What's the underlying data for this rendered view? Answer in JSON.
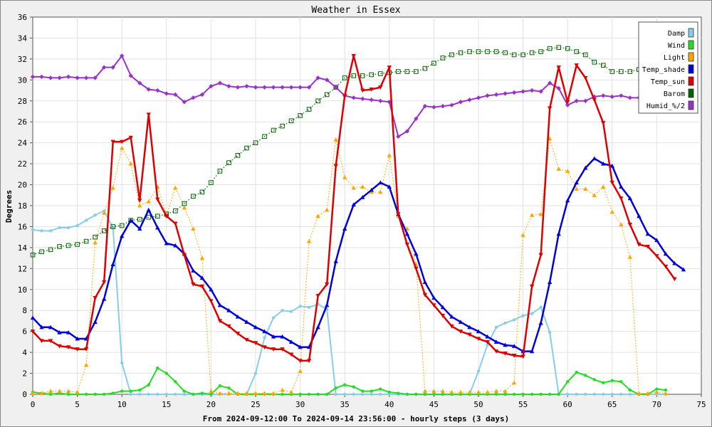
{
  "chart_data": {
    "type": "line",
    "title": "Weather in Essex",
    "xlabel": "From 2024-09-12:00 To 2024-09-14 23:56:00 - hourly steps (3 days)",
    "ylabel": "Degrees",
    "xlim": [
      0,
      75
    ],
    "ylim": [
      0,
      36
    ],
    "x_ticks": [
      0,
      5,
      10,
      15,
      20,
      25,
      30,
      35,
      40,
      45,
      50,
      55,
      60,
      65,
      70,
      75
    ],
    "y_ticks": [
      0,
      2,
      4,
      6,
      8,
      10,
      12,
      14,
      16,
      18,
      20,
      22,
      24,
      26,
      28,
      30,
      32,
      34,
      36
    ],
    "grid": true,
    "legend_position": "top-right",
    "x_start": 0,
    "series": [
      {
        "name": "Damp",
        "color": "#87ceeb",
        "style": "solid",
        "marker": "dot",
        "values": [
          15.7,
          15.6,
          15.6,
          15.9,
          15.9,
          16.1,
          16.6,
          17.1,
          17.5,
          15.9,
          3.0,
          0.0,
          0.0,
          0.0,
          0.0,
          0.0,
          0.0,
          0.0,
          0.0,
          0.0,
          0.0,
          0.0,
          0.0,
          0.0,
          0.0,
          2.0,
          5.4,
          7.3,
          8.0,
          7.9,
          8.4,
          8.3,
          8.6,
          8.1,
          0.0,
          0.0,
          0.0,
          0.0,
          0.0,
          0.0,
          0.0,
          0.0,
          0.0,
          0.0,
          0.0,
          0.0,
          0.0,
          0.0,
          0.0,
          0.0,
          2.2,
          4.7,
          6.4,
          6.8,
          7.1,
          7.5,
          7.7,
          8.3,
          5.9,
          0.0,
          0.0,
          0.0,
          0.0,
          0.0,
          0.0,
          0.0,
          0.0,
          0.0,
          0.0,
          0.0,
          0.0,
          0.0
        ]
      },
      {
        "name": "Wind",
        "color": "#22dd22",
        "style": "solid",
        "marker": "dot",
        "values": [
          0.2,
          0.1,
          0.0,
          0.1,
          0.0,
          0.0,
          0.0,
          0.0,
          0.0,
          0.1,
          0.3,
          0.3,
          0.4,
          0.9,
          2.5,
          2.0,
          1.2,
          0.3,
          0.0,
          0.1,
          0.0,
          0.8,
          0.6,
          0.0,
          0.0,
          0.0,
          0.0,
          0.0,
          0.0,
          0.0,
          0.0,
          0.0,
          0.0,
          0.0,
          0.6,
          0.9,
          0.7,
          0.3,
          0.3,
          0.5,
          0.2,
          0.1,
          0.0,
          0.0,
          0.0,
          0.0,
          0.0,
          0.0,
          0.0,
          0.0,
          0.0,
          0.0,
          0.0,
          0.0,
          0.0,
          0.0,
          0.0,
          0.0,
          0.0,
          0.0,
          1.2,
          2.1,
          1.8,
          1.4,
          1.1,
          1.3,
          1.2,
          0.4,
          0.0,
          0.0,
          0.5,
          0.4
        ]
      },
      {
        "name": "Light",
        "color": "#ffa500",
        "style": "dotted",
        "marker": "triangle-up",
        "values": [
          0.1,
          0.1,
          0.3,
          0.3,
          0.3,
          0.2,
          2.8,
          14.5,
          17.3,
          19.7,
          23.5,
          22.0,
          18.0,
          18.4,
          19.8,
          17.1,
          19.7,
          17.8,
          15.8,
          13.0,
          0.3,
          0.1,
          0.1,
          0.1,
          0.1,
          0.1,
          0.1,
          0.1,
          0.4,
          0.2,
          2.2,
          14.6,
          17.0,
          17.6,
          24.3,
          20.7,
          19.7,
          19.8,
          19.3,
          19.3,
          22.8,
          17.0,
          15.8,
          12.4,
          0.3,
          0.3,
          0.3,
          0.2,
          0.2,
          0.2,
          0.2,
          0.2,
          0.3,
          0.3,
          1.1,
          15.2,
          17.1,
          17.2,
          24.4,
          21.5,
          21.3,
          19.6,
          19.6,
          19.0,
          19.8,
          17.4,
          16.2,
          13.1,
          0.1,
          0.1,
          0.2,
          0.1
        ]
      },
      {
        "name": "Temp_shade",
        "color": "#0000dd",
        "style": "solid",
        "marker": "triangle-up",
        "values": [
          7.3,
          6.4,
          6.4,
          5.9,
          5.9,
          5.3,
          5.3,
          6.9,
          9.1,
          12.4,
          15.1,
          16.6,
          15.8,
          17.6,
          15.9,
          14.4,
          14.2,
          13.4,
          11.8,
          11.1,
          10.0,
          8.5,
          8.0,
          7.4,
          6.9,
          6.4,
          6.0,
          5.5,
          5.5,
          5.0,
          4.5,
          4.5,
          6.4,
          8.5,
          12.7,
          15.8,
          18.1,
          18.8,
          19.5,
          20.2,
          19.8,
          17.2,
          15.3,
          13.4,
          10.7,
          9.2,
          8.3,
          7.4,
          6.9,
          6.4,
          6.0,
          5.5,
          5.0,
          4.7,
          4.6,
          4.1,
          4.1,
          6.8,
          10.7,
          15.3,
          18.5,
          20.2,
          21.6,
          22.5,
          22.0,
          21.8,
          19.8,
          18.7,
          17.0,
          15.3,
          14.7,
          13.4,
          12.5,
          11.9
        ]
      },
      {
        "name": "Temp_sun",
        "color": "#dd0000",
        "style": "solid",
        "marker": "triangle-down",
        "values": [
          6.0,
          5.1,
          5.1,
          4.6,
          4.5,
          4.3,
          4.3,
          9.2,
          10.7,
          24.1,
          24.1,
          24.5,
          18.5,
          26.7,
          18.6,
          17.0,
          16.3,
          13.3,
          10.5,
          10.3,
          8.9,
          7.0,
          6.5,
          5.8,
          5.2,
          4.9,
          4.5,
          4.3,
          4.3,
          3.8,
          3.2,
          3.2,
          9.4,
          10.5,
          21.8,
          28.5,
          32.3,
          29.0,
          29.1,
          29.3,
          31.2,
          17.2,
          14.3,
          12.0,
          9.5,
          8.5,
          7.5,
          6.5,
          6.0,
          5.7,
          5.3,
          5.0,
          4.1,
          3.9,
          3.7,
          3.6,
          10.3,
          13.3,
          27.3,
          31.2,
          27.9,
          31.4,
          30.2,
          28.1,
          25.9,
          20.2,
          18.7,
          16.2,
          14.3,
          14.1,
          13.2,
          12.2,
          11.0
        ]
      },
      {
        "name": "Barom",
        "color": "#006400",
        "style": "dotted",
        "marker": "square",
        "values": [
          13.3,
          13.6,
          13.8,
          14.1,
          14.2,
          14.3,
          14.6,
          15.0,
          15.6,
          16.0,
          16.1,
          16.6,
          16.7,
          16.9,
          17.0,
          17.2,
          17.5,
          18.2,
          18.9,
          19.3,
          20.2,
          21.3,
          22.1,
          22.8,
          23.5,
          24.0,
          24.6,
          25.2,
          25.6,
          26.1,
          26.6,
          27.2,
          28.0,
          28.6,
          29.3,
          30.2,
          30.4,
          30.4,
          30.5,
          30.6,
          30.7,
          30.8,
          30.8,
          30.8,
          31.1,
          31.6,
          32.1,
          32.4,
          32.6,
          32.7,
          32.7,
          32.7,
          32.7,
          32.6,
          32.4,
          32.4,
          32.6,
          32.7,
          33.0,
          33.1,
          33.0,
          32.7,
          32.4,
          31.7,
          31.4,
          30.8,
          30.8,
          30.8,
          31.0,
          31.0
        ]
      },
      {
        "name": "Humid_%/2",
        "color": "#9932cc",
        "style": "solid",
        "marker": "diamond",
        "values": [
          30.3,
          30.3,
          30.2,
          30.2,
          30.3,
          30.2,
          30.2,
          30.2,
          31.2,
          31.2,
          32.3,
          30.4,
          29.7,
          29.1,
          29.0,
          28.7,
          28.6,
          27.9,
          28.3,
          28.6,
          29.4,
          29.7,
          29.4,
          29.3,
          29.4,
          29.3,
          29.3,
          29.3,
          29.3,
          29.3,
          29.3,
          29.3,
          30.2,
          30.0,
          29.3,
          28.5,
          28.3,
          28.2,
          28.1,
          28.0,
          27.9,
          24.6,
          25.1,
          26.3,
          27.5,
          27.4,
          27.5,
          27.6,
          27.9,
          28.1,
          28.3,
          28.5,
          28.6,
          28.7,
          28.8,
          28.9,
          29.0,
          28.9,
          29.7,
          29.2,
          27.6,
          28.0,
          28.0,
          28.4,
          28.5,
          28.4,
          28.5,
          28.3,
          28.3,
          28.3,
          28.2
        ]
      }
    ]
  }
}
